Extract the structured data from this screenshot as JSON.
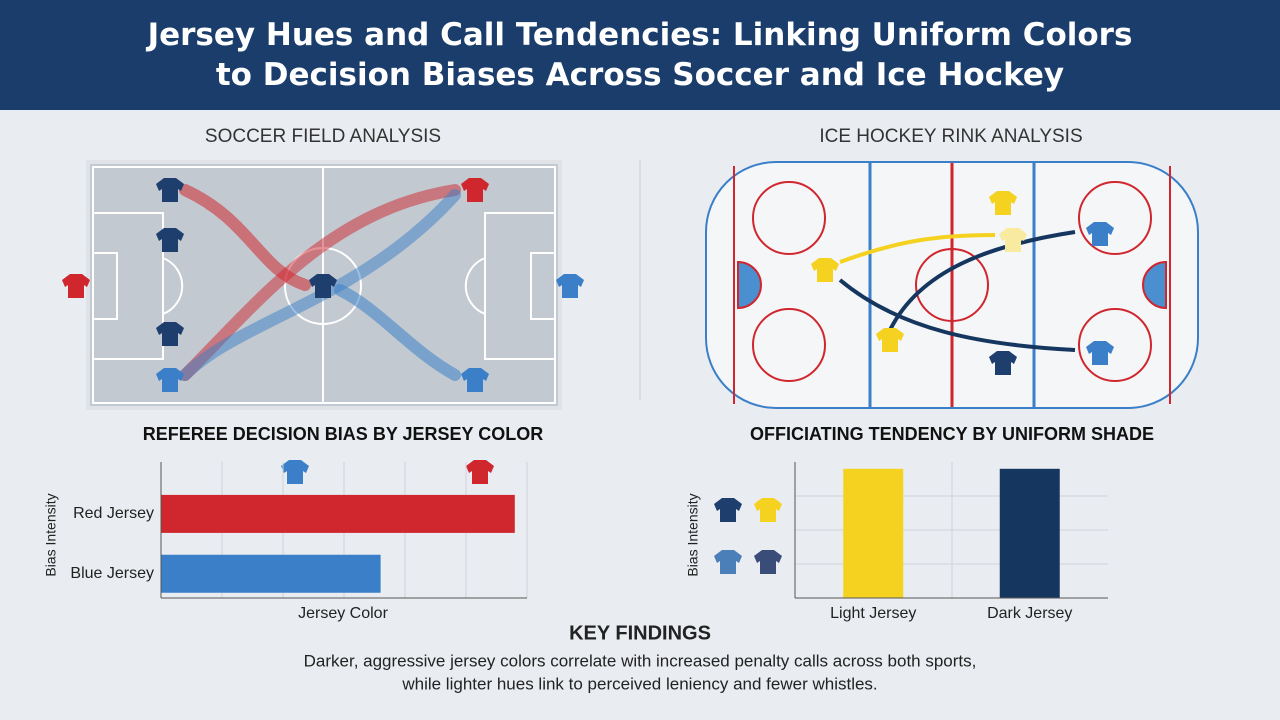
{
  "header": {
    "title": "Jersey Hues and Call Tendencies: Linking Uniform Colors to Decision Biases Across Soccer and Ice Hockey"
  },
  "panels": {
    "soccer": "SOCCER FIELD ANALYSIS",
    "hockey": "ICE HOCKEY RINK ANALYSIS"
  },
  "chart_data": [
    {
      "type": "hbar",
      "title": "REFEREE DECISION BIAS BY JERSEY COLOR",
      "y_label": "Bias Intensity",
      "x_label": "Jersey Color",
      "categories": [
        "Red Jersey",
        "Blue Jersey"
      ],
      "values": [
        5.8,
        3.6
      ],
      "colors": [
        "#d0262e",
        "#3a7fc8"
      ],
      "xlim": [
        0,
        6
      ],
      "grid": true
    },
    {
      "type": "bar",
      "title": "OFFICIATING TENDENCY BY UNIFORM SHADE",
      "y_label": "Bias Intensity",
      "categories": [
        "Light Jersey",
        "Dark Jersey"
      ],
      "values": [
        3.8,
        3.8
      ],
      "colors": [
        "#f5d21f",
        "#15365f"
      ],
      "ylim": [
        0,
        4
      ],
      "grid": true
    }
  ],
  "key_findings": {
    "heading": "KEY FINDINGS",
    "lines": [
      "Darker, aggressive jersey colors correlate with increased penalty calls across both sports,",
      "while lighter hues link to perceived leniency and fewer whistles."
    ]
  }
}
